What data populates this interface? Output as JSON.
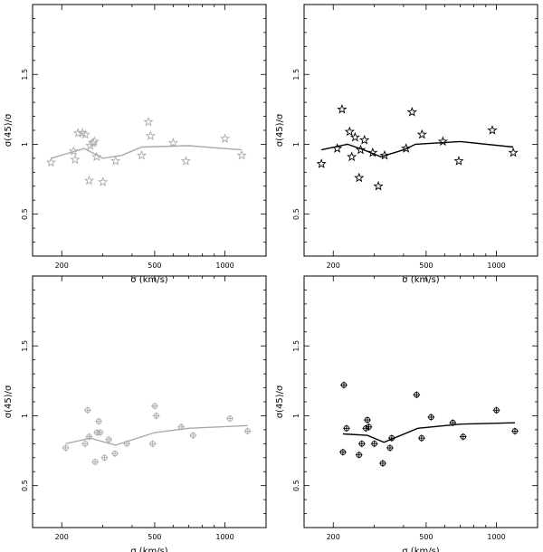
{
  "chart_data": [
    {
      "type": "scatter",
      "panel": "top-left",
      "xscale": "log",
      "xlabel": "σ (km/s)",
      "ylabel": "σ(45)/σ",
      "xlim": [
        150,
        1500
      ],
      "ylim": [
        0.2,
        2.0
      ],
      "xticks": [
        200,
        500,
        1000
      ],
      "yticks": [
        0.5,
        1,
        1.5
      ],
      "xtick_labels": [
        "200",
        "500",
        "1000"
      ],
      "ytick_labels": [
        "0.5",
        "1",
        "1.5"
      ],
      "marker": "star",
      "color": "#aaaaaa",
      "points": [
        {
          "x": 180,
          "y": 0.87
        },
        {
          "x": 225,
          "y": 0.95
        },
        {
          "x": 228,
          "y": 0.89
        },
        {
          "x": 235,
          "y": 1.08
        },
        {
          "x": 245,
          "y": 1.08
        },
        {
          "x": 252,
          "y": 1.07
        },
        {
          "x": 262,
          "y": 0.74
        },
        {
          "x": 265,
          "y": 0.99
        },
        {
          "x": 272,
          "y": 1.01
        },
        {
          "x": 276,
          "y": 1.02
        },
        {
          "x": 282,
          "y": 0.91
        },
        {
          "x": 300,
          "y": 0.73
        },
        {
          "x": 340,
          "y": 0.88
        },
        {
          "x": 440,
          "y": 0.92
        },
        {
          "x": 470,
          "y": 1.16
        },
        {
          "x": 480,
          "y": 1.06
        },
        {
          "x": 600,
          "y": 1.01
        },
        {
          "x": 680,
          "y": 0.88
        },
        {
          "x": 1000,
          "y": 1.04
        },
        {
          "x": 1180,
          "y": 0.92
        }
      ],
      "line": [
        {
          "x": 180,
          "y": 0.9
        },
        {
          "x": 250,
          "y": 0.97
        },
        {
          "x": 300,
          "y": 0.9
        },
        {
          "x": 360,
          "y": 0.92
        },
        {
          "x": 440,
          "y": 0.98
        },
        {
          "x": 700,
          "y": 0.99
        },
        {
          "x": 1180,
          "y": 0.96
        }
      ]
    },
    {
      "type": "scatter",
      "panel": "top-right",
      "xscale": "log",
      "xlabel": "σ (km/s)",
      "ylabel": "σ(45)/σ",
      "xlim": [
        150,
        1500
      ],
      "ylim": [
        0.2,
        2.0
      ],
      "xticks": [
        200,
        500,
        1000
      ],
      "yticks": [
        0.5,
        1,
        1.5
      ],
      "xtick_labels": [
        "200",
        "500",
        "1000"
      ],
      "ytick_labels": [
        "0.5",
        "1",
        "1.5"
      ],
      "marker": "star",
      "color": "#000000",
      "points": [
        {
          "x": 178,
          "y": 0.86
        },
        {
          "x": 208,
          "y": 0.97
        },
        {
          "x": 218,
          "y": 1.25
        },
        {
          "x": 235,
          "y": 1.09
        },
        {
          "x": 240,
          "y": 0.91
        },
        {
          "x": 248,
          "y": 1.05
        },
        {
          "x": 258,
          "y": 0.76
        },
        {
          "x": 262,
          "y": 0.96
        },
        {
          "x": 272,
          "y": 1.03
        },
        {
          "x": 295,
          "y": 0.94
        },
        {
          "x": 312,
          "y": 0.7
        },
        {
          "x": 332,
          "y": 0.92
        },
        {
          "x": 410,
          "y": 0.97
        },
        {
          "x": 435,
          "y": 1.23
        },
        {
          "x": 480,
          "y": 1.07
        },
        {
          "x": 590,
          "y": 1.02
        },
        {
          "x": 690,
          "y": 0.88
        },
        {
          "x": 960,
          "y": 1.1
        },
        {
          "x": 1180,
          "y": 0.94
        }
      ],
      "line": [
        {
          "x": 178,
          "y": 0.96
        },
        {
          "x": 230,
          "y": 1.0
        },
        {
          "x": 270,
          "y": 0.96
        },
        {
          "x": 320,
          "y": 0.91
        },
        {
          "x": 400,
          "y": 0.96
        },
        {
          "x": 450,
          "y": 1.0
        },
        {
          "x": 700,
          "y": 1.02
        },
        {
          "x": 1180,
          "y": 0.98
        }
      ]
    },
    {
      "type": "scatter",
      "panel": "bottom-left",
      "xscale": "log",
      "xlabel": "σ (km/s)",
      "ylabel": "σ(45)/σ",
      "xlim": [
        150,
        1500
      ],
      "ylim": [
        0.2,
        2.0
      ],
      "xticks": [
        200,
        500,
        1000
      ],
      "yticks": [
        0.5,
        1,
        1.5
      ],
      "xtick_labels": [
        "200",
        "500",
        "1000"
      ],
      "ytick_labels": [
        "0.5",
        "1",
        "1.5"
      ],
      "marker": "circle-plus",
      "color": "#aaaaaa",
      "points": [
        {
          "x": 208,
          "y": 0.77
        },
        {
          "x": 252,
          "y": 0.8
        },
        {
          "x": 258,
          "y": 1.04
        },
        {
          "x": 262,
          "y": 0.85
        },
        {
          "x": 278,
          "y": 0.67
        },
        {
          "x": 283,
          "y": 0.88
        },
        {
          "x": 288,
          "y": 0.96
        },
        {
          "x": 292,
          "y": 0.88
        },
        {
          "x": 305,
          "y": 0.7
        },
        {
          "x": 318,
          "y": 0.83
        },
        {
          "x": 338,
          "y": 0.73
        },
        {
          "x": 380,
          "y": 0.8
        },
        {
          "x": 490,
          "y": 0.8
        },
        {
          "x": 500,
          "y": 1.07
        },
        {
          "x": 508,
          "y": 1.0
        },
        {
          "x": 650,
          "y": 0.92
        },
        {
          "x": 730,
          "y": 0.86
        },
        {
          "x": 1050,
          "y": 0.98
        },
        {
          "x": 1250,
          "y": 0.89
        }
      ],
      "line": [
        {
          "x": 208,
          "y": 0.8
        },
        {
          "x": 265,
          "y": 0.84
        },
        {
          "x": 340,
          "y": 0.79
        },
        {
          "x": 500,
          "y": 0.88
        },
        {
          "x": 700,
          "y": 0.91
        },
        {
          "x": 1250,
          "y": 0.93
        }
      ]
    },
    {
      "type": "scatter",
      "panel": "bottom-right",
      "xscale": "log",
      "xlabel": "σ (km/s)",
      "ylabel": "σ(45)/σ",
      "xlim": [
        150,
        1500
      ],
      "ylim": [
        0.2,
        2.0
      ],
      "xticks": [
        200,
        500,
        1000
      ],
      "yticks": [
        0.5,
        1,
        1.5
      ],
      "xtick_labels": [
        "200",
        "500",
        "1000"
      ],
      "ytick_labels": [
        "0.5",
        "1",
        "1.5"
      ],
      "marker": "circle-plus",
      "color": "#000000",
      "points": [
        {
          "x": 220,
          "y": 0.74
        },
        {
          "x": 222,
          "y": 1.22
        },
        {
          "x": 228,
          "y": 0.91
        },
        {
          "x": 258,
          "y": 0.72
        },
        {
          "x": 265,
          "y": 0.8
        },
        {
          "x": 276,
          "y": 0.91
        },
        {
          "x": 280,
          "y": 0.97
        },
        {
          "x": 284,
          "y": 0.92
        },
        {
          "x": 300,
          "y": 0.8
        },
        {
          "x": 326,
          "y": 0.66
        },
        {
          "x": 350,
          "y": 0.77
        },
        {
          "x": 356,
          "y": 0.84
        },
        {
          "x": 455,
          "y": 1.15
        },
        {
          "x": 478,
          "y": 0.84
        },
        {
          "x": 525,
          "y": 0.99
        },
        {
          "x": 650,
          "y": 0.95
        },
        {
          "x": 720,
          "y": 0.85
        },
        {
          "x": 1000,
          "y": 1.04
        },
        {
          "x": 1200,
          "y": 0.89
        }
      ],
      "line": [
        {
          "x": 220,
          "y": 0.87
        },
        {
          "x": 280,
          "y": 0.86
        },
        {
          "x": 330,
          "y": 0.81
        },
        {
          "x": 460,
          "y": 0.91
        },
        {
          "x": 700,
          "y": 0.94
        },
        {
          "x": 1200,
          "y": 0.95
        }
      ]
    }
  ]
}
